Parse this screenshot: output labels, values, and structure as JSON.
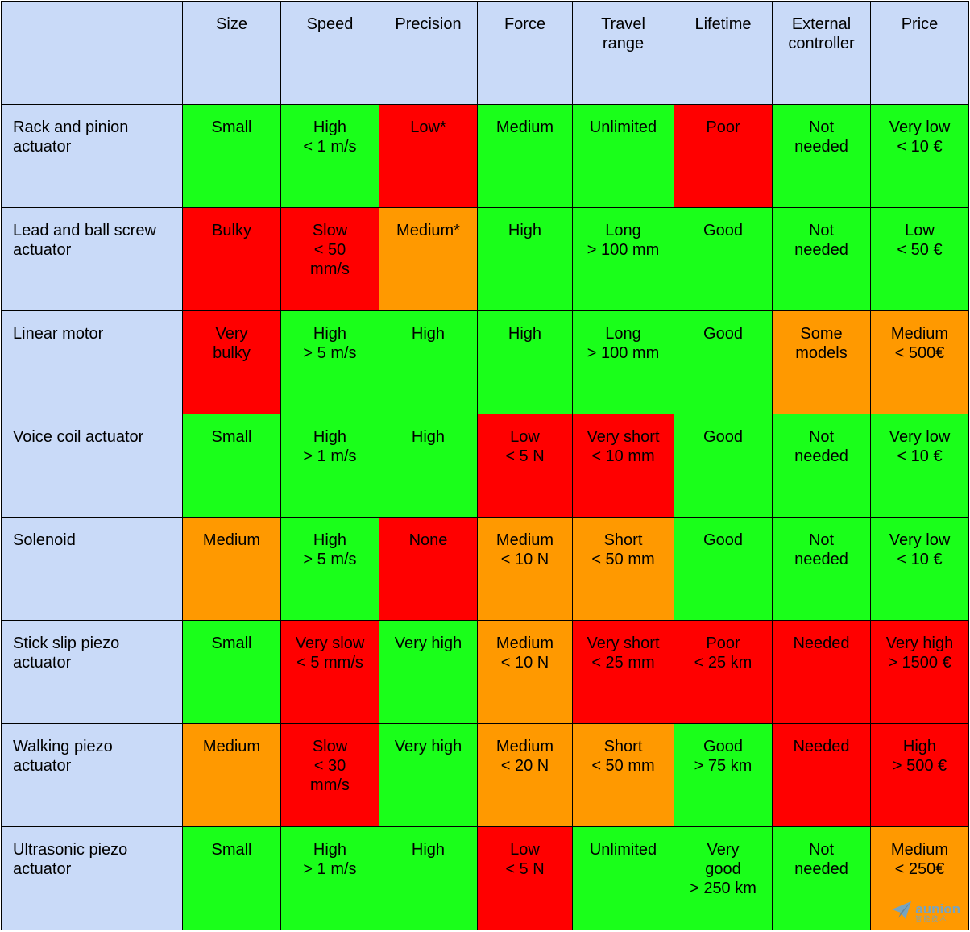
{
  "table": {
    "columns": [
      "",
      "Size",
      "Speed",
      "Precision",
      "Force",
      "Travel\nrange",
      "Lifetime",
      "External\ncontroller",
      "Price"
    ],
    "rows": [
      {
        "label": "Rack and pinion\nactuator",
        "cells": [
          {
            "text": "Small",
            "color": "green"
          },
          {
            "text": "High\n< 1 m/s",
            "color": "green"
          },
          {
            "text": "Low*",
            "color": "red"
          },
          {
            "text": "Medium",
            "color": "green"
          },
          {
            "text": "Unlimited",
            "color": "green"
          },
          {
            "text": "Poor",
            "color": "red"
          },
          {
            "text": "Not\nneeded",
            "color": "green"
          },
          {
            "text": "Very low\n< 10 €",
            "color": "green"
          }
        ]
      },
      {
        "label": "Lead and ball screw\nactuator",
        "cells": [
          {
            "text": "Bulky",
            "color": "red"
          },
          {
            "text": "Slow\n< 50\nmm/s",
            "color": "red"
          },
          {
            "text": "Medium*",
            "color": "orange"
          },
          {
            "text": "High",
            "color": "green"
          },
          {
            "text": "Long\n> 100 mm",
            "color": "green"
          },
          {
            "text": "Good",
            "color": "green"
          },
          {
            "text": "Not\nneeded",
            "color": "green"
          },
          {
            "text": "Low\n< 50 €",
            "color": "green"
          }
        ]
      },
      {
        "label": "Linear motor",
        "cells": [
          {
            "text": "Very\nbulky",
            "color": "red"
          },
          {
            "text": "High\n> 5 m/s",
            "color": "green"
          },
          {
            "text": "High",
            "color": "green"
          },
          {
            "text": "High",
            "color": "green"
          },
          {
            "text": "Long\n> 100 mm",
            "color": "green"
          },
          {
            "text": "Good",
            "color": "green"
          },
          {
            "text": "Some\nmodels",
            "color": "orange"
          },
          {
            "text": "Medium\n< 500€",
            "color": "orange"
          }
        ]
      },
      {
        "label": "Voice coil actuator",
        "cells": [
          {
            "text": "Small",
            "color": "green"
          },
          {
            "text": "High\n> 1 m/s",
            "color": "green"
          },
          {
            "text": "High",
            "color": "green"
          },
          {
            "text": "Low\n< 5 N",
            "color": "red"
          },
          {
            "text": "Very short\n< 10 mm",
            "color": "red"
          },
          {
            "text": "Good",
            "color": "green"
          },
          {
            "text": "Not\nneeded",
            "color": "green"
          },
          {
            "text": "Very low\n< 10 €",
            "color": "green"
          }
        ]
      },
      {
        "label": "Solenoid",
        "cells": [
          {
            "text": "Medium",
            "color": "orange"
          },
          {
            "text": "High\n> 5 m/s",
            "color": "green"
          },
          {
            "text": "None",
            "color": "red"
          },
          {
            "text": "Medium\n< 10 N",
            "color": "orange"
          },
          {
            "text": "Short\n< 50 mm",
            "color": "orange"
          },
          {
            "text": "Good",
            "color": "green"
          },
          {
            "text": "Not\nneeded",
            "color": "green"
          },
          {
            "text": "Very low\n< 10 €",
            "color": "green"
          }
        ]
      },
      {
        "label": "Stick slip piezo\nactuator",
        "cells": [
          {
            "text": "Small",
            "color": "green"
          },
          {
            "text": "Very slow\n< 5 mm/s",
            "color": "red"
          },
          {
            "text": "Very high",
            "color": "green"
          },
          {
            "text": "Medium\n< 10 N",
            "color": "orange"
          },
          {
            "text": "Very short\n< 25 mm",
            "color": "red"
          },
          {
            "text": "Poor\n< 25 km",
            "color": "red"
          },
          {
            "text": "Needed",
            "color": "red"
          },
          {
            "text": "Very high\n> 1500 €",
            "color": "red"
          }
        ]
      },
      {
        "label": "Walking piezo\nactuator",
        "cells": [
          {
            "text": "Medium",
            "color": "orange"
          },
          {
            "text": "Slow\n< 30\nmm/s",
            "color": "red"
          },
          {
            "text": "Very high",
            "color": "green"
          },
          {
            "text": "Medium\n< 20 N",
            "color": "orange"
          },
          {
            "text": "Short\n< 50 mm",
            "color": "orange"
          },
          {
            "text": "Good\n> 75 km",
            "color": "green"
          },
          {
            "text": "Needed",
            "color": "red"
          },
          {
            "text": "High\n> 500 €",
            "color": "red"
          }
        ]
      },
      {
        "label": "Ultrasonic piezo\nactuator",
        "cells": [
          {
            "text": "Small",
            "color": "green"
          },
          {
            "text": "High\n> 1 m/s",
            "color": "green"
          },
          {
            "text": "High",
            "color": "green"
          },
          {
            "text": "Low\n< 5 N",
            "color": "red"
          },
          {
            "text": "Unlimited",
            "color": "green"
          },
          {
            "text": "Very\ngood\n> 250 km",
            "color": "green"
          },
          {
            "text": "Not\nneeded",
            "color": "green"
          },
          {
            "text": "Medium\n< 250€",
            "color": "orange"
          }
        ]
      }
    ]
  },
  "colors": {
    "header_bg": "#c9daf8",
    "green": "#1aff1a",
    "red": "#ff0000",
    "orange": "#ff9900",
    "watermark": "#4aa8ff"
  },
  "watermark": {
    "icon": "paper-plane-icon",
    "text": "aunion",
    "subtext": "智能技术"
  }
}
